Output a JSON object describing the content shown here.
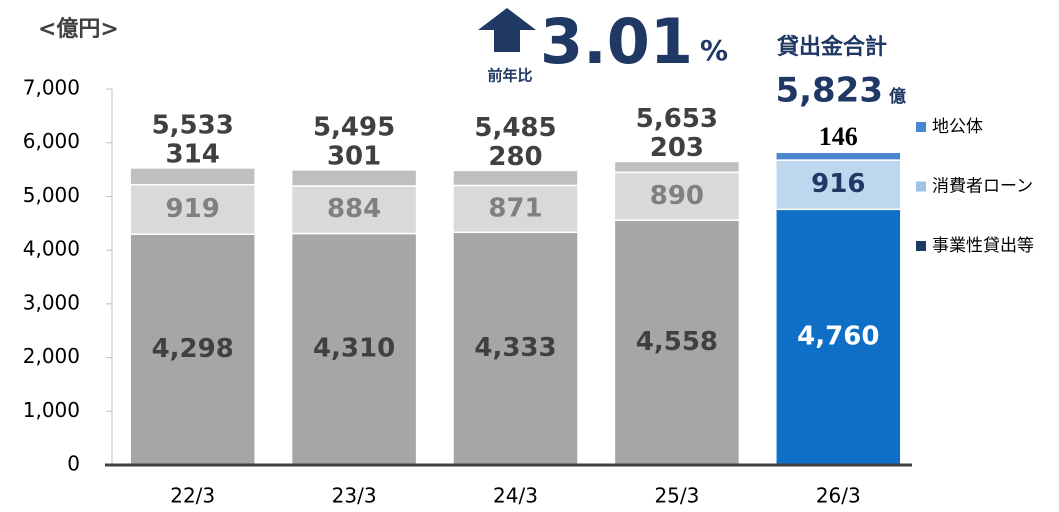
{
  "chart_data": {
    "type": "stacked_bar",
    "unit_label": "<億円>",
    "categories": [
      "22/3",
      "23/3",
      "24/3",
      "25/3",
      "26/3"
    ],
    "series": [
      {
        "name": "事業性貸出等",
        "color": "#1f3864",
        "colors": [
          "#a6a6a6",
          "#a6a6a6",
          "#a6a6a6",
          "#a6a6a6",
          "#0f6fc6"
        ],
        "values": [
          4298,
          4310,
          4333,
          4558,
          4760
        ],
        "value_labels": [
          "4,298",
          "4,310",
          "4,333",
          "4,558",
          "4,760"
        ]
      },
      {
        "name": "消費者ローン",
        "color": "#9dc3e6",
        "colors": [
          "#d9d9d9",
          "#d9d9d9",
          "#d9d9d9",
          "#d9d9d9",
          "#bdd7ee"
        ],
        "values": [
          919,
          884,
          871,
          890,
          916
        ]
      },
      {
        "name": "地公体",
        "color": "#4a86d0",
        "colors": [
          "#bfbfbf",
          "#bfbfbf",
          "#bfbfbf",
          "#bfbfbf",
          "#4a86d0"
        ],
        "values": [
          314,
          301,
          280,
          203,
          146
        ]
      }
    ],
    "totals": [
      5533,
      5495,
      5485,
      5653,
      null
    ],
    "total_labels": [
      "5,533",
      "5,495",
      "5,485",
      "5,653",
      null
    ],
    "annotation": {
      "yoy_label": "前年比",
      "yoy_value": 3.01,
      "yoy_unit": "%",
      "total_label": "貸出金合計",
      "total_value": 5823,
      "total_value_label": "5,823",
      "total_unit": "億"
    },
    "ylim": [
      0,
      7000
    ],
    "yticks": [
      0,
      {
        "value": 1000,
        "label": "1,000"
      },
      {
        "value": 2000,
        "label": "2,000"
      },
      {
        "value": 3000,
        "label": "3,000"
      },
      {
        "value": 4000,
        "label": "4,000"
      },
      {
        "value": 5000,
        "label": "5,000"
      },
      {
        "value": 6000,
        "label": "6,000"
      },
      {
        "value": 7000,
        "label": "7,000"
      }
    ],
    "legend": "right"
  }
}
